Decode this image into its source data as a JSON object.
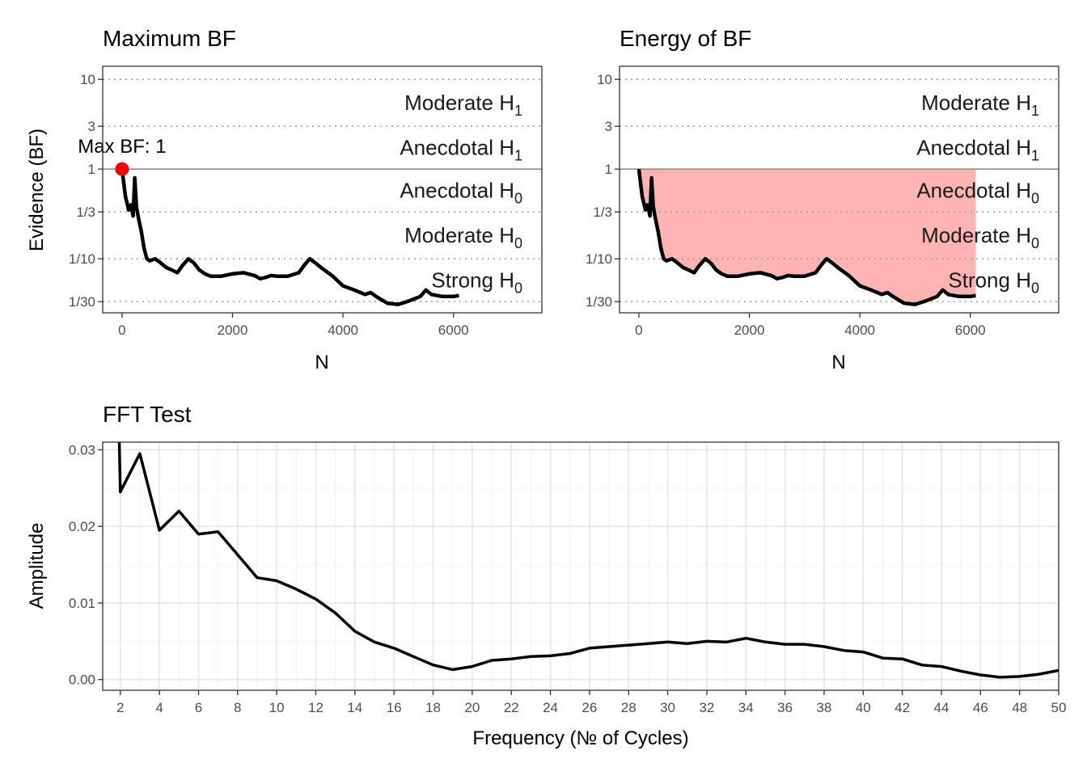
{
  "charts": {
    "maximum": {
      "title": "Maximum BF",
      "ylabel": "Evidence (BF)",
      "xlabel": "N",
      "annotation": "Max BF: 1"
    },
    "energy": {
      "title": "Energy of BF",
      "xlabel": "N"
    },
    "fft": {
      "title": "FFT Test",
      "ylabel": "Amplitude",
      "xlabel": "Frequency (№ of Cycles)"
    }
  },
  "chart_data": [
    {
      "type": "line",
      "title": "Maximum BF",
      "xlabel": "N",
      "ylabel": "Evidence (BF)",
      "y_scale": "log",
      "xlim": [
        -350,
        7600
      ],
      "ylim": [
        0.025,
        14
      ],
      "x_ticks": [
        0,
        2000,
        4000,
        6000
      ],
      "x_tick_labels": [
        "0",
        "2000",
        "4000",
        "6000"
      ],
      "y_ticks": [
        10,
        3,
        1,
        0.3333,
        0.1,
        0.0333
      ],
      "y_tick_labels": [
        "10",
        "3",
        "1",
        "1/3",
        "1/10",
        "1/30"
      ],
      "zones": [
        {
          "name": "Moderate",
          "sub": "1",
          "lower": 3,
          "upper": 10
        },
        {
          "name": "Anecdotal",
          "sub": "1",
          "lower": 1,
          "upper": 3
        },
        {
          "name": "Anecdotal",
          "sub": "0",
          "lower": 0.3333,
          "upper": 1
        },
        {
          "name": "Moderate",
          "sub": "0",
          "lower": 0.1,
          "upper": 0.3333
        },
        {
          "name": "Strong",
          "sub": "0",
          "lower": 0.0333,
          "upper": 0.1
        }
      ],
      "series": [
        {
          "x": [
            0,
            60,
            120,
            160,
            200,
            230,
            260,
            300,
            350,
            400,
            450,
            500,
            600,
            700,
            800,
            900,
            1000,
            1100,
            1200,
            1300,
            1400,
            1500,
            1600,
            1800,
            2000,
            2200,
            2400,
            2500,
            2600,
            2700,
            2800,
            3000,
            3200,
            3300,
            3400,
            3500,
            3600,
            3800,
            4000,
            4200,
            4400,
            4500,
            4600,
            4800,
            5000,
            5200,
            5400,
            5500,
            5600,
            5800,
            6000,
            6100
          ],
          "y": [
            1,
            0.5,
            0.35,
            0.4,
            0.3,
            0.8,
            0.38,
            0.28,
            0.2,
            0.13,
            0.1,
            0.095,
            0.1,
            0.09,
            0.08,
            0.075,
            0.07,
            0.085,
            0.1,
            0.09,
            0.075,
            0.068,
            0.064,
            0.064,
            0.068,
            0.07,
            0.065,
            0.06,
            0.062,
            0.065,
            0.064,
            0.064,
            0.07,
            0.085,
            0.1,
            0.09,
            0.08,
            0.065,
            0.05,
            0.045,
            0.04,
            0.042,
            0.038,
            0.032,
            0.031,
            0.034,
            0.038,
            0.045,
            0.04,
            0.038,
            0.038,
            0.039
          ]
        }
      ],
      "point": {
        "x": 0,
        "y": 1,
        "color": "#ff0000"
      }
    },
    {
      "type": "area",
      "title": "Energy of BF",
      "xlabel": "N",
      "y_scale": "log",
      "xlim": [
        -350,
        7600
      ],
      "ylim": [
        0.025,
        14
      ],
      "x_ticks": [
        0,
        2000,
        4000,
        6000
      ],
      "x_tick_labels": [
        "0",
        "2000",
        "4000",
        "6000"
      ],
      "y_ticks": [
        10,
        3,
        1,
        0.3333,
        0.1,
        0.0333
      ],
      "y_tick_labels": [
        "10",
        "3",
        "1",
        "1/3",
        "1/10",
        "1/30"
      ],
      "fill_color": "#ffb3b3",
      "fill_upper": 1,
      "zones": [
        {
          "name": "Moderate",
          "sub": "1",
          "lower": 3,
          "upper": 10
        },
        {
          "name": "Anecdotal",
          "sub": "1",
          "lower": 1,
          "upper": 3
        },
        {
          "name": "Anecdotal",
          "sub": "0",
          "lower": 0.3333,
          "upper": 1
        },
        {
          "name": "Moderate",
          "sub": "0",
          "lower": 0.1,
          "upper": 0.3333
        },
        {
          "name": "Strong",
          "sub": "0",
          "lower": 0.0333,
          "upper": 0.1
        }
      ],
      "series": [
        {
          "x": [
            0,
            60,
            120,
            160,
            200,
            230,
            260,
            300,
            350,
            400,
            450,
            500,
            600,
            700,
            800,
            900,
            1000,
            1100,
            1200,
            1300,
            1400,
            1500,
            1600,
            1800,
            2000,
            2200,
            2400,
            2500,
            2600,
            2700,
            2800,
            3000,
            3200,
            3300,
            3400,
            3500,
            3600,
            3800,
            4000,
            4200,
            4400,
            4500,
            4600,
            4800,
            5000,
            5200,
            5400,
            5500,
            5600,
            5800,
            6000,
            6100
          ],
          "y": [
            1,
            0.5,
            0.35,
            0.4,
            0.3,
            0.8,
            0.38,
            0.28,
            0.2,
            0.13,
            0.1,
            0.095,
            0.1,
            0.09,
            0.08,
            0.075,
            0.07,
            0.085,
            0.1,
            0.09,
            0.075,
            0.068,
            0.064,
            0.064,
            0.068,
            0.07,
            0.065,
            0.06,
            0.062,
            0.065,
            0.064,
            0.064,
            0.07,
            0.085,
            0.1,
            0.09,
            0.08,
            0.065,
            0.05,
            0.045,
            0.04,
            0.042,
            0.038,
            0.032,
            0.031,
            0.034,
            0.038,
            0.045,
            0.04,
            0.038,
            0.038,
            0.039
          ]
        }
      ]
    },
    {
      "type": "line",
      "title": "FFT Test",
      "xlabel": "Frequency (№ of Cycles)",
      "ylabel": "Amplitude",
      "xlim": [
        1.1,
        50
      ],
      "ylim": [
        -0.0014,
        0.031
      ],
      "x_ticks": [
        2,
        4,
        6,
        8,
        10,
        12,
        14,
        16,
        18,
        20,
        22,
        24,
        26,
        28,
        30,
        32,
        34,
        36,
        38,
        40,
        42,
        44,
        46,
        48,
        50
      ],
      "x_tick_labels": [
        "2",
        "4",
        "6",
        "8",
        "10",
        "12",
        "14",
        "16",
        "18",
        "20",
        "22",
        "24",
        "26",
        "28",
        "30",
        "32",
        "34",
        "36",
        "38",
        "40",
        "42",
        "44",
        "46",
        "48",
        "50"
      ],
      "y_ticks": [
        0,
        0.01,
        0.02,
        0.03
      ],
      "y_tick_labels": [
        "0.00",
        "0.01",
        "0.02",
        "0.03"
      ],
      "grid": true,
      "series": [
        {
          "x": [
            2,
            3,
            4,
            5,
            6,
            7,
            8,
            9,
            10,
            11,
            12,
            13,
            14,
            15,
            16,
            17,
            18,
            19,
            20,
            21,
            22,
            23,
            24,
            25,
            26,
            27,
            28,
            29,
            30,
            31,
            32,
            33,
            34,
            35,
            36,
            37,
            38,
            39,
            40,
            41,
            42,
            43,
            44,
            45,
            46,
            47,
            48,
            49,
            50
          ],
          "y": [
            0.0245,
            0.0295,
            0.0195,
            0.022,
            0.019,
            0.0193,
            0.0163,
            0.0133,
            0.0129,
            0.0118,
            0.0105,
            0.0087,
            0.0063,
            0.0049,
            0.0041,
            0.003,
            0.0019,
            0.0013,
            0.0017,
            0.0025,
            0.0027,
            0.003,
            0.0031,
            0.0034,
            0.0041,
            0.0043,
            0.0045,
            0.0047,
            0.0049,
            0.0047,
            0.005,
            0.0049,
            0.0054,
            0.0049,
            0.0046,
            0.0046,
            0.0043,
            0.0038,
            0.0036,
            0.0028,
            0.0027,
            0.0019,
            0.0017,
            0.0011,
            0.0006,
            0.0003,
            0.0004,
            0.0007,
            0.0012
          ]
        }
      ]
    }
  ]
}
